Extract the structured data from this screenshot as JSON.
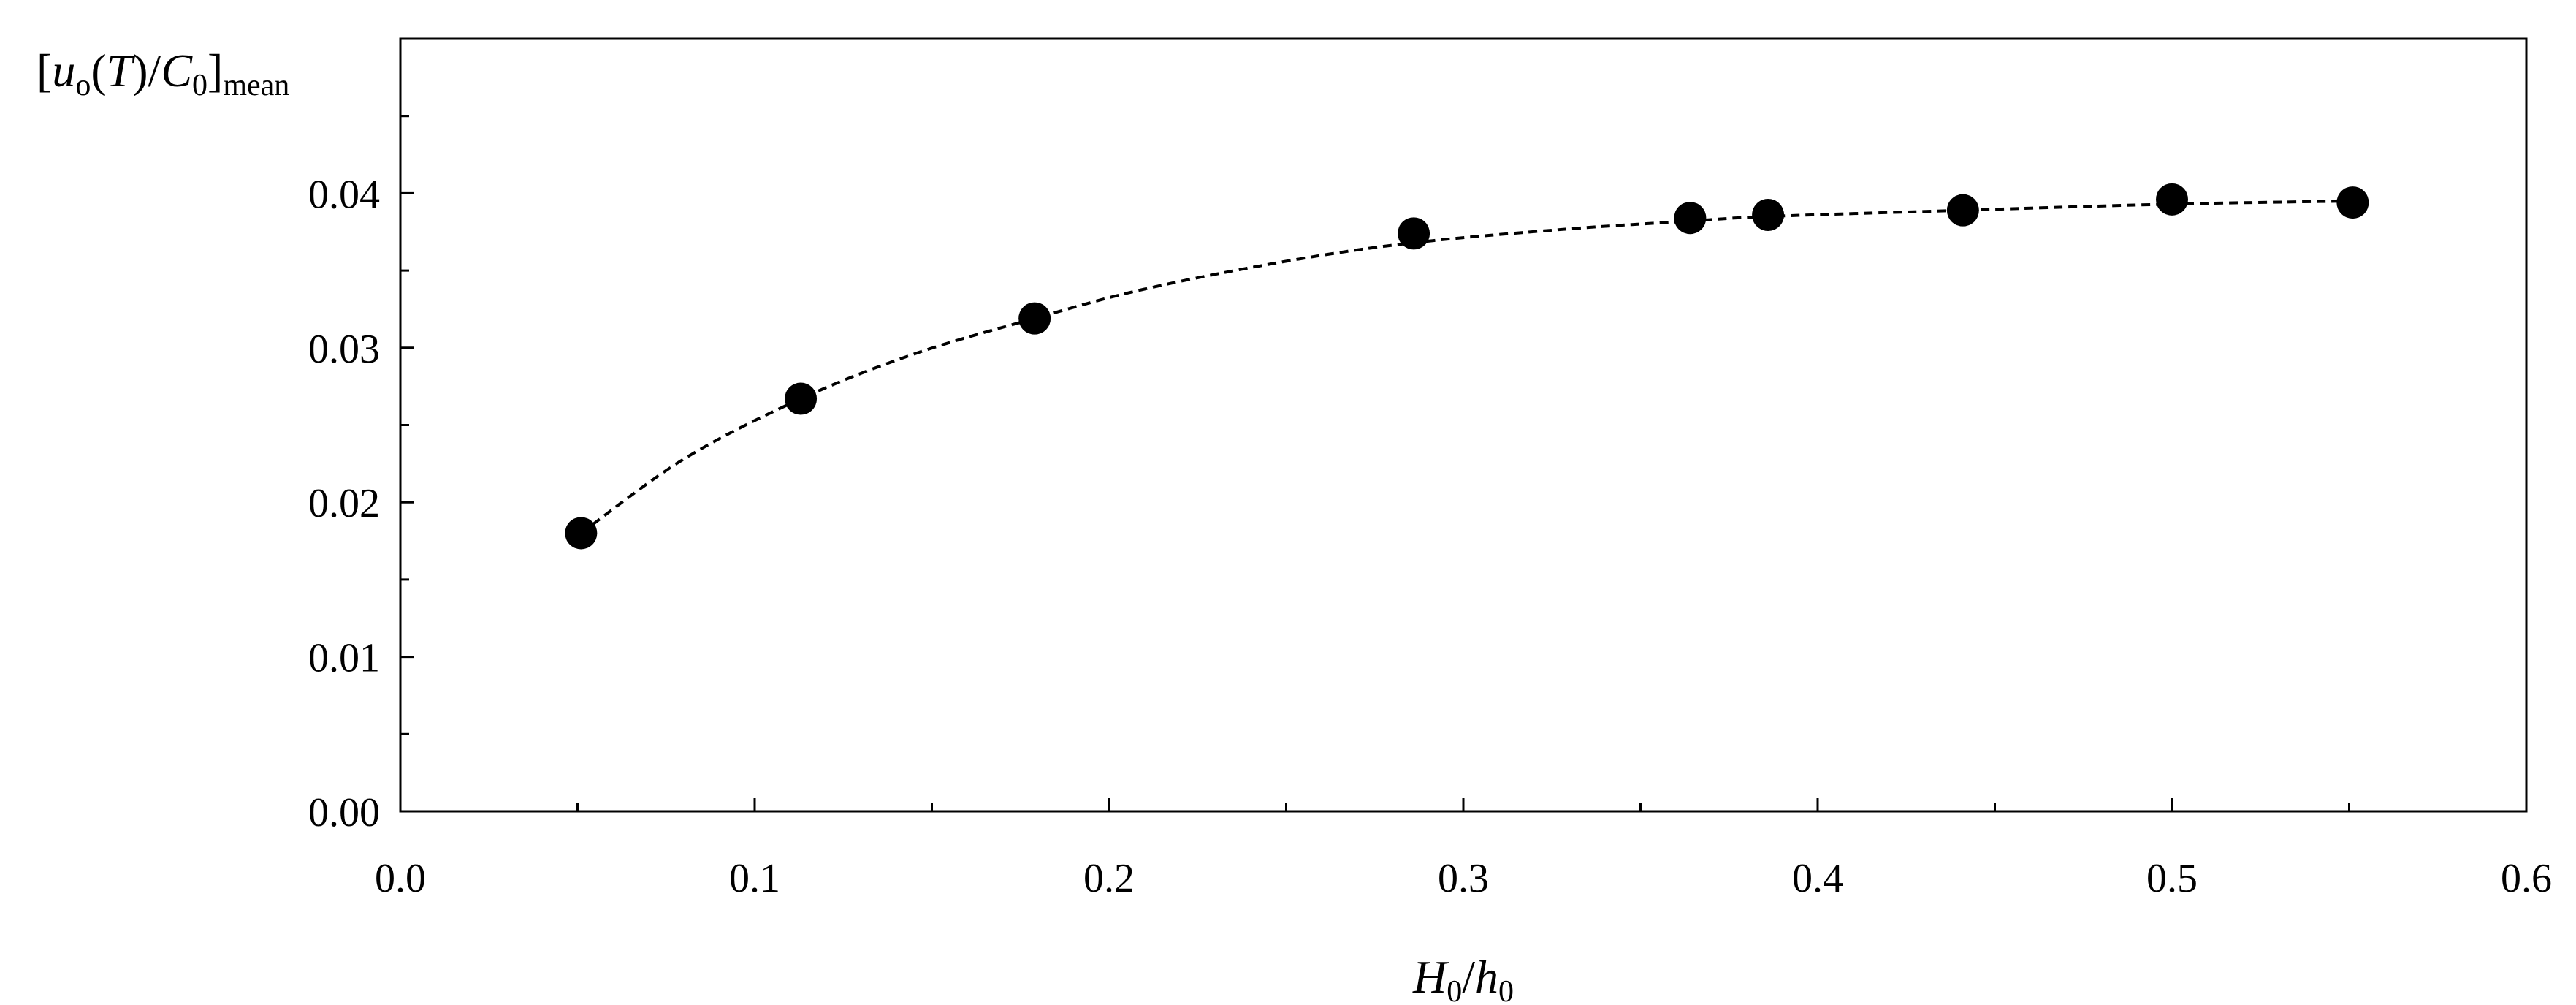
{
  "chart_data": {
    "type": "scatter",
    "title": "",
    "xlabel": {
      "parts": [
        {
          "text": "H",
          "style": "italic"
        },
        {
          "text": "0",
          "style": "sub"
        },
        {
          "text": "/",
          "style": "normal"
        },
        {
          "text": "h",
          "style": "italic"
        },
        {
          "text": "0",
          "style": "sub"
        }
      ]
    },
    "ylabel": {
      "parts": [
        {
          "text": "[",
          "style": "normal"
        },
        {
          "text": "u",
          "style": "italic"
        },
        {
          "text": "o",
          "style": "sub"
        },
        {
          "text": "(",
          "style": "normal"
        },
        {
          "text": "T",
          "style": "italic"
        },
        {
          "text": ")/",
          "style": "normal"
        },
        {
          "text": "C",
          "style": "italic"
        },
        {
          "text": "0",
          "style": "sub"
        },
        {
          "text": "]",
          "style": "normal"
        },
        {
          "text": "mean",
          "style": "sub"
        }
      ]
    },
    "xlim": [
      0.0,
      0.6
    ],
    "ylim": [
      0.0,
      0.05
    ],
    "x_ticks": [
      0.0,
      0.1,
      0.2,
      0.3,
      0.4,
      0.5,
      0.6
    ],
    "x_tick_labels": [
      "0.0",
      "0.1",
      "0.2",
      "0.3",
      "0.4",
      "0.5",
      "0.6"
    ],
    "x_minor_ticks": [
      0.05,
      0.15,
      0.25,
      0.35,
      0.45,
      0.55
    ],
    "y_ticks": [
      0.0,
      0.01,
      0.02,
      0.03,
      0.04
    ],
    "y_tick_labels": [
      "0.00",
      "0.01",
      "0.02",
      "0.03",
      "0.04"
    ],
    "y_minor_ticks": [
      0.005,
      0.015,
      0.025,
      0.035,
      0.045
    ],
    "grid": false,
    "legend": "none",
    "series": [
      {
        "marker": "filled-circle",
        "color": "#000000",
        "points": [
          {
            "x": 0.051,
            "y": 0.018
          },
          {
            "x": 0.113,
            "y": 0.0267
          },
          {
            "x": 0.179,
            "y": 0.0319
          },
          {
            "x": 0.286,
            "y": 0.0374
          },
          {
            "x": 0.364,
            "y": 0.0384
          },
          {
            "x": 0.386,
            "y": 0.0386
          },
          {
            "x": 0.441,
            "y": 0.0389
          },
          {
            "x": 0.5,
            "y": 0.0396
          },
          {
            "x": 0.551,
            "y": 0.0394
          }
        ]
      }
    ],
    "trendline": {
      "style": "dashed",
      "color": "#000000",
      "points": [
        {
          "x": 0.051,
          "y": 0.018
        },
        {
          "x": 0.08,
          "y": 0.0228
        },
        {
          "x": 0.113,
          "y": 0.0267
        },
        {
          "x": 0.145,
          "y": 0.0296
        },
        {
          "x": 0.179,
          "y": 0.0319
        },
        {
          "x": 0.21,
          "y": 0.0338
        },
        {
          "x": 0.25,
          "y": 0.0356
        },
        {
          "x": 0.286,
          "y": 0.0368
        },
        {
          "x": 0.33,
          "y": 0.0377
        },
        {
          "x": 0.364,
          "y": 0.0382
        },
        {
          "x": 0.386,
          "y": 0.0385
        },
        {
          "x": 0.441,
          "y": 0.0389
        },
        {
          "x": 0.5,
          "y": 0.0393
        },
        {
          "x": 0.551,
          "y": 0.0395
        }
      ]
    }
  }
}
